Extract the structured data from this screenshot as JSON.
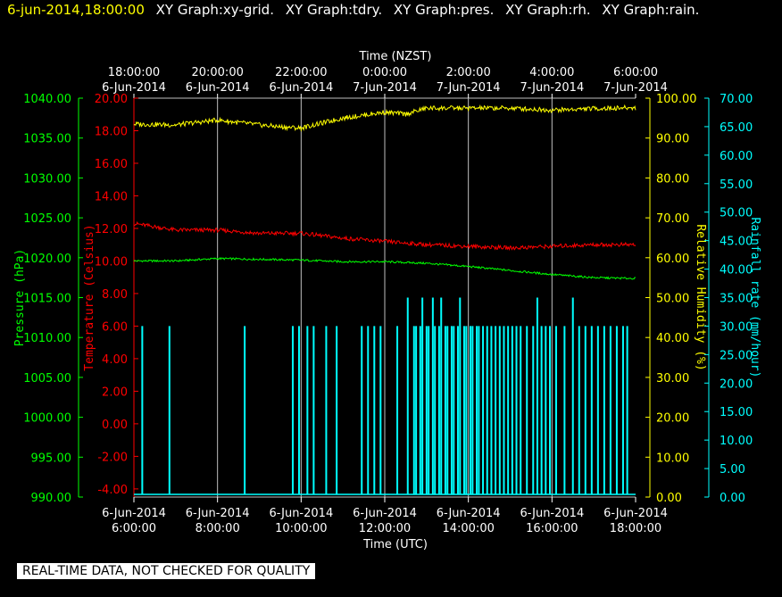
{
  "header": {
    "timestamp": "6-jun-2014,18:00:00",
    "titles": [
      "XY Graph:xy-grid.",
      "XY Graph:tdry.",
      "XY Graph:pres.",
      "XY Graph:rh.",
      "XY Graph:rain."
    ]
  },
  "footer_note": "REAL-TIME DATA, NOT CHECKED FOR QUALITY",
  "colors": {
    "background": "#000000",
    "grid": "#c0c0c0",
    "pressure": "#00ff00",
    "temperature": "#ff0000",
    "humidity": "#ffff00",
    "rain": "#00ffff",
    "axis_text": "#ffffff"
  },
  "chart_data": {
    "type": "line",
    "grid": true,
    "x_top": {
      "label": "Time (NZST)",
      "ticks": [
        {
          "time": "18:00:00",
          "date": "6-Jun-2014"
        },
        {
          "time": "20:00:00",
          "date": "6-Jun-2014"
        },
        {
          "time": "22:00:00",
          "date": "6-Jun-2014"
        },
        {
          "time": "0:00:00",
          "date": "7-Jun-2014"
        },
        {
          "time": "2:00:00",
          "date": "7-Jun-2014"
        },
        {
          "time": "4:00:00",
          "date": "7-Jun-2014"
        },
        {
          "time": "6:00:00",
          "date": "7-Jun-2014"
        }
      ]
    },
    "x_bottom": {
      "label": "Time (UTC)",
      "range": [
        "6-Jun-2014 6:00:00",
        "6-Jun-2014 18:00:00"
      ],
      "ticks": [
        {
          "date": "6-Jun-2014",
          "time": "6:00:00"
        },
        {
          "date": "6-Jun-2014",
          "time": "8:00:00"
        },
        {
          "date": "6-Jun-2014",
          "time": "10:00:00"
        },
        {
          "date": "6-Jun-2014",
          "time": "12:00:00"
        },
        {
          "date": "6-Jun-2014",
          "time": "14:00:00"
        },
        {
          "date": "6-Jun-2014",
          "time": "16:00:00"
        },
        {
          "date": "6-Jun-2014",
          "time": "18:00:00"
        }
      ]
    },
    "axes": {
      "pressure": {
        "label": "Pressure (hPa)",
        "ylim": [
          990,
          1040
        ],
        "ticks": [
          "1040.00",
          "1035.00",
          "1030.00",
          "1025.00",
          "1020.00",
          "1015.00",
          "1010.00",
          "1005.00",
          "1000.00",
          "995.00",
          "990.00"
        ]
      },
      "temperature": {
        "label": "Temperature (Celsius)",
        "ylim": [
          -4.5,
          20
        ],
        "ticks": [
          "20.00",
          "18.00",
          "16.00",
          "14.00",
          "12.00",
          "10.00",
          "8.00",
          "6.00",
          "4.00",
          "2.00",
          "0.00",
          "-2.00",
          "-4.00"
        ]
      },
      "humidity": {
        "label": "Relative Humidity (%)",
        "ylim": [
          0,
          100
        ],
        "ticks": [
          "100.00",
          "90.00",
          "80.00",
          "70.00",
          "60.00",
          "50.00",
          "40.00",
          "30.00",
          "20.00",
          "10.00",
          "0.00"
        ]
      },
      "rain": {
        "label": "Rainfall rate (mm/hour)",
        "ylim": [
          0,
          70
        ],
        "ticks": [
          "70.00",
          "65.00",
          "60.00",
          "55.00",
          "50.00",
          "45.00",
          "40.00",
          "35.00",
          "30.00",
          "25.00",
          "20.00",
          "15.00",
          "10.00",
          "5.00",
          "0.00"
        ]
      }
    },
    "series": [
      {
        "name": "pres",
        "axis": "pressure",
        "color": "#00ff00",
        "x_hours": [
          6,
          7,
          8,
          9,
          10,
          11,
          12,
          13,
          14,
          15,
          16,
          17,
          18
        ],
        "values": [
          1019.6,
          1019.6,
          1019.9,
          1019.8,
          1019.7,
          1019.5,
          1019.5,
          1019.3,
          1018.9,
          1018.4,
          1017.9,
          1017.5,
          1017.4
        ]
      },
      {
        "name": "tdry",
        "axis": "temperature",
        "color": "#ff0000",
        "x_hours": [
          6,
          7,
          8,
          9,
          10,
          11,
          12,
          13,
          14,
          15,
          16,
          17,
          18
        ],
        "values": [
          12.3,
          11.9,
          11.9,
          11.7,
          11.7,
          11.4,
          11.2,
          11.0,
          10.9,
          10.8,
          10.9,
          11.0,
          11.0
        ]
      },
      {
        "name": "rh",
        "axis": "humidity",
        "color": "#ffff00",
        "x_hours": [
          6,
          7,
          8,
          9,
          9.5,
          10,
          11,
          12,
          12.5,
          13,
          14,
          15,
          16,
          17,
          18
        ],
        "values": [
          93.5,
          93.3,
          94.5,
          93.3,
          92.8,
          92.5,
          95.0,
          96.5,
          96.0,
          97.5,
          97.5,
          97.5,
          97.0,
          97.4,
          97.6
        ]
      },
      {
        "name": "rain",
        "axis": "rain",
        "color": "#00ffff",
        "rendering": "spikes",
        "x_hours": [
          6.2,
          6.85,
          8.65,
          9.8,
          9.95,
          10.15,
          10.3,
          10.6,
          10.85,
          11.45,
          11.6,
          11.75,
          11.9,
          12.3,
          12.55,
          12.7,
          12.75,
          12.85,
          12.9,
          13.0,
          13.05,
          13.15,
          13.2,
          13.3,
          13.35,
          13.45,
          13.5,
          13.6,
          13.65,
          13.75,
          13.8,
          13.9,
          13.95,
          14.05,
          14.1,
          14.2,
          14.25,
          14.35,
          14.45,
          14.55,
          14.65,
          14.75,
          14.85,
          14.95,
          15.05,
          15.15,
          15.25,
          15.4,
          15.55,
          15.65,
          15.75,
          15.85,
          15.95,
          16.1,
          16.3,
          16.5,
          16.65,
          16.8,
          16.95,
          17.1,
          17.25,
          17.4,
          17.55,
          17.7,
          17.8
        ],
        "values": [
          30,
          30,
          30,
          30,
          30,
          30,
          30,
          30,
          30,
          30,
          30,
          30,
          30,
          30,
          35,
          30,
          30,
          30,
          35,
          30,
          30,
          35,
          30,
          30,
          35,
          30,
          30,
          30,
          30,
          30,
          35,
          30,
          30,
          30,
          30,
          30,
          30,
          30,
          30,
          30,
          30,
          30,
          30,
          30,
          30,
          30,
          30,
          30,
          30,
          35,
          30,
          30,
          30,
          30,
          30,
          35,
          30,
          30,
          30,
          30,
          30,
          30,
          30,
          30,
          30
        ]
      }
    ]
  }
}
